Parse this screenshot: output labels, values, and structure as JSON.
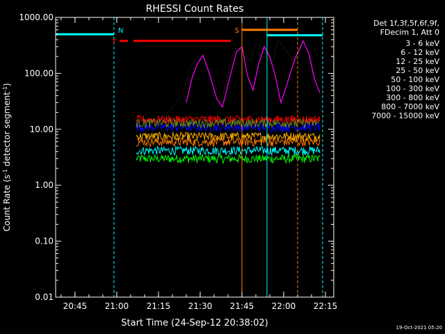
{
  "chart_data": {
    "type": "line",
    "title": "RHESSI Count Rates",
    "xlabel": "Start Time (24-Sep-12 20:38:02)",
    "ylabel_main": "Count Rate (s",
    "ylabel_sup": "-1",
    "ylabel_mid": " detector segment",
    "ylabel_sup2": "-1",
    "ylabel_end": ")",
    "y_scale": "log",
    "ylim": [
      0.01,
      1000
    ],
    "y_ticks": [
      {
        "value": 0.01,
        "label": "0.01"
      },
      {
        "value": 0.1,
        "label": "0.10"
      },
      {
        "value": 1,
        "label": "1.00"
      },
      {
        "value": 10,
        "label": "10.00"
      },
      {
        "value": 100,
        "label": "100.00"
      },
      {
        "value": 1000,
        "label": "1000.00"
      }
    ],
    "xlim": [
      "20:38:02",
      "22:18:00"
    ],
    "x_ticks": [
      "20:45",
      "21:00",
      "21:15",
      "21:30",
      "21:45",
      "22:00",
      "22:15"
    ],
    "legend": {
      "header": [
        "Det 1f,3f,5f,6f,9f,",
        "FDecim 1, Att 0"
      ],
      "placement": "right",
      "items": [
        {
          "label": "3 - 6 keV",
          "color": "#000000"
        },
        {
          "label": "6 - 12 keV",
          "color": "#ff00ff"
        },
        {
          "label": "12 - 25 keV",
          "color": "#00ff00"
        },
        {
          "label": "25 - 50 keV",
          "color": "#00ffff"
        },
        {
          "label": "50 - 100 keV",
          "color": "#ffb000"
        },
        {
          "label": "100 - 300 keV",
          "color": "#ff7f00"
        },
        {
          "label": "300 - 800 keV",
          "color": "#0000ff"
        },
        {
          "label": "800 - 7000 keV",
          "color": "#ff0000"
        },
        {
          "label": "7000 - 15000 keV",
          "color": "#6b8e23"
        }
      ]
    },
    "series": [
      {
        "name": "3 - 6 keV",
        "color": "#000000",
        "points": [
          [
            "21:07",
            3
          ],
          [
            "21:12",
            8
          ],
          [
            "21:16",
            14
          ],
          [
            "21:20",
            25
          ],
          [
            "21:24",
            45
          ],
          [
            "21:26",
            120
          ],
          [
            "21:29",
            200
          ],
          [
            "21:31",
            160
          ],
          [
            "21:33",
            120
          ],
          [
            "21:36",
            50
          ],
          [
            "21:38",
            35
          ],
          [
            "21:41",
            180
          ],
          [
            "21:43",
            290
          ],
          [
            "21:46",
            250
          ],
          [
            "21:48",
            160
          ],
          [
            "21:50",
            350
          ],
          [
            "21:53",
            260
          ],
          [
            "21:56",
            160
          ],
          [
            "21:58",
            400
          ],
          [
            "22:01",
            250
          ],
          [
            "22:04",
            150
          ],
          [
            "22:07",
            380
          ],
          [
            "22:09",
            320
          ],
          [
            "22:11",
            90
          ],
          [
            "22:13",
            70
          ]
        ]
      },
      {
        "name": "6 - 12 keV",
        "color": "#ff00ff",
        "points": [
          [
            "21:25",
            30
          ],
          [
            "21:27",
            80
          ],
          [
            "21:29",
            150
          ],
          [
            "21:31",
            210
          ],
          [
            "21:33",
            110
          ],
          [
            "21:36",
            35
          ],
          [
            "21:38",
            25
          ],
          [
            "21:41",
            100
          ],
          [
            "21:43",
            240
          ],
          [
            "21:45",
            300
          ],
          [
            "21:47",
            90
          ],
          [
            "21:49",
            50
          ],
          [
            "21:51",
            150
          ],
          [
            "21:53",
            300
          ],
          [
            "21:55",
            200
          ],
          [
            "21:57",
            90
          ],
          [
            "21:59",
            30
          ],
          [
            "22:01",
            60
          ],
          [
            "22:04",
            180
          ],
          [
            "22:07",
            380
          ],
          [
            "22:09",
            230
          ],
          [
            "22:11",
            80
          ],
          [
            "22:13",
            45
          ]
        ]
      },
      {
        "name": "12 - 25 keV",
        "color": "#00ff00",
        "level": 3.0,
        "start": "21:07",
        "end": "22:13"
      },
      {
        "name": "25 - 50 keV",
        "color": "#00ffff",
        "level": 4.2,
        "start": "21:07",
        "end": "22:13"
      },
      {
        "name": "50 - 100 keV",
        "color": "#ffb000",
        "level": 7.5,
        "start": "21:07",
        "end": "22:13"
      },
      {
        "name": "100 - 300 keV",
        "color": "#ff7f00",
        "level": 6.0,
        "start": "21:07",
        "end": "22:13"
      },
      {
        "name": "300 - 800 keV",
        "color": "#0000ff",
        "level": 11.0,
        "start": "21:07",
        "end": "22:13"
      },
      {
        "name": "800 - 7000 keV",
        "color": "#ff0000",
        "level": 15.0,
        "start": "21:07",
        "end": "22:13"
      },
      {
        "name": "7000 - 15000 keV",
        "color": "#6b8e23",
        "level": 13.0,
        "start": "21:07",
        "end": "22:13"
      }
    ],
    "flags": [
      {
        "label": "N",
        "color": "#00ffff",
        "level": 500,
        "start": "20:38:02",
        "end": "20:59"
      },
      {
        "label": "F",
        "color": "#ff0000",
        "level": 380,
        "start": "21:01",
        "end": "21:04"
      },
      {
        "label": "",
        "color": "#ff0000",
        "level": 380,
        "start": "21:06",
        "end": "21:41"
      },
      {
        "label": "S",
        "color": "#ff7f00",
        "level": 600,
        "start": "21:45",
        "end": "22:05"
      },
      {
        "label": "",
        "color": "#00ffff",
        "level": 480,
        "start": "21:54",
        "end": "22:14"
      }
    ],
    "vlines": [
      {
        "time": "20:38:02",
        "color": "#00ffff",
        "style": "solid"
      },
      {
        "time": "20:59",
        "color": "#00ffff",
        "style": "dashed"
      },
      {
        "time": "21:45",
        "color": "#ff7f00",
        "style": "solid"
      },
      {
        "time": "21:54",
        "color": "#00ffff",
        "style": "solid"
      },
      {
        "time": "22:05",
        "color": "#ff7f00",
        "style": "dashed"
      },
      {
        "time": "22:14",
        "color": "#00ffff",
        "style": "dashed"
      }
    ],
    "colors": {
      "background": "#000000",
      "foreground": "#ffffff"
    }
  },
  "timestamp": "19-Oct-2021 05:20"
}
